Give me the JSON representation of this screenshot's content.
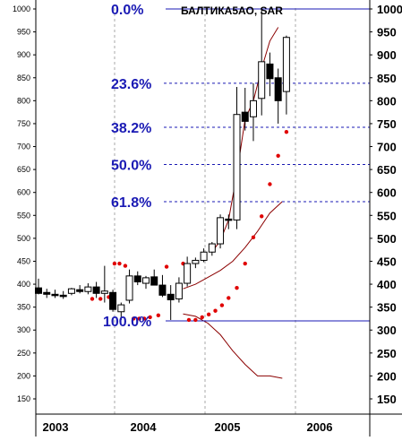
{
  "chart_data": {
    "type": "candlestick",
    "title": "БАЛТИКА5АО, SAR",
    "y_axis": {
      "min": 150,
      "max": 1000,
      "step": 50,
      "position": "left-and-right"
    },
    "x_axis": {
      "labels": [
        "2003",
        "2004",
        "2005",
        "2006"
      ]
    },
    "grid": {
      "vertical": "dashed",
      "horizontal": "none"
    },
    "colors": {
      "fib": "#1a1ab4",
      "sar": "#e00000",
      "bands": "#8b0000",
      "candle": "#000000",
      "grid": "#a8a8a8"
    },
    "fibonacci_levels": [
      {
        "label": "0.0%",
        "value": 1000
      },
      {
        "label": "23.6%",
        "value": 838
      },
      {
        "label": "38.2%",
        "value": 742
      },
      {
        "label": "50.0%",
        "value": 661
      },
      {
        "label": "61.8%",
        "value": 580
      },
      {
        "label": "100.0%",
        "value": 320
      }
    ],
    "candles": [
      {
        "t": 0.0,
        "o": 392,
        "h": 412,
        "l": 378,
        "c": 380
      },
      {
        "t": 1.0,
        "o": 382,
        "h": 390,
        "l": 370,
        "c": 378
      },
      {
        "t": 2.0,
        "o": 378,
        "h": 388,
        "l": 370,
        "c": 376
      },
      {
        "t": 3.0,
        "o": 376,
        "h": 385,
        "l": 368,
        "c": 375
      },
      {
        "t": 4.0,
        "o": 380,
        "h": 392,
        "l": 376,
        "c": 390
      },
      {
        "t": 5.0,
        "o": 388,
        "h": 398,
        "l": 380,
        "c": 384
      },
      {
        "t": 6.0,
        "o": 384,
        "h": 402,
        "l": 378,
        "c": 394
      },
      {
        "t": 7.0,
        "o": 394,
        "h": 405,
        "l": 370,
        "c": 380
      },
      {
        "t": 8.0,
        "o": 380,
        "h": 440,
        "l": 360,
        "c": 385
      },
      {
        "t": 9.0,
        "o": 382,
        "h": 388,
        "l": 340,
        "c": 345
      },
      {
        "t": 10.0,
        "o": 340,
        "h": 360,
        "l": 322,
        "c": 355
      },
      {
        "t": 11.0,
        "o": 365,
        "h": 432,
        "l": 358,
        "c": 418
      },
      {
        "t": 12.0,
        "o": 418,
        "h": 428,
        "l": 398,
        "c": 405
      },
      {
        "t": 13.0,
        "o": 402,
        "h": 418,
        "l": 390,
        "c": 414
      },
      {
        "t": 14.0,
        "o": 416,
        "h": 432,
        "l": 400,
        "c": 398
      },
      {
        "t": 15.0,
        "o": 398,
        "h": 420,
        "l": 372,
        "c": 376
      },
      {
        "t": 16.0,
        "o": 378,
        "h": 398,
        "l": 322,
        "c": 366
      },
      {
        "t": 17.0,
        "o": 368,
        "h": 415,
        "l": 360,
        "c": 402
      },
      {
        "t": 18.0,
        "o": 402,
        "h": 460,
        "l": 395,
        "c": 445
      },
      {
        "t": 19.0,
        "o": 445,
        "h": 458,
        "l": 435,
        "c": 452
      },
      {
        "t": 20.0,
        "o": 452,
        "h": 478,
        "l": 448,
        "c": 470
      },
      {
        "t": 21.0,
        "o": 470,
        "h": 492,
        "l": 462,
        "c": 488
      },
      {
        "t": 22.0,
        "o": 488,
        "h": 552,
        "l": 478,
        "c": 545
      },
      {
        "t": 23.0,
        "o": 542,
        "h": 552,
        "l": 520,
        "c": 540
      },
      {
        "t": 24.0,
        "o": 540,
        "h": 830,
        "l": 520,
        "c": 770
      },
      {
        "t": 25.0,
        "o": 775,
        "h": 828,
        "l": 735,
        "c": 755
      },
      {
        "t": 26.0,
        "o": 765,
        "h": 838,
        "l": 712,
        "c": 800
      },
      {
        "t": 27.0,
        "o": 805,
        "h": 1000,
        "l": 768,
        "c": 885
      },
      {
        "t": 28.0,
        "o": 880,
        "h": 905,
        "l": 810,
        "c": 848
      },
      {
        "t": 29.0,
        "o": 850,
        "h": 870,
        "l": 750,
        "c": 800
      },
      {
        "t": 30.0,
        "o": 820,
        "h": 942,
        "l": 770,
        "c": 938
      }
    ],
    "sar_points": [
      {
        "t": 6.5,
        "v": 368
      },
      {
        "t": 7.5,
        "v": 368
      },
      {
        "t": 8.5,
        "v": 372
      },
      {
        "t": 9.2,
        "v": 445
      },
      {
        "t": 9.8,
        "v": 445
      },
      {
        "t": 10.5,
        "v": 440
      },
      {
        "t": 11.5,
        "v": 325
      },
      {
        "t": 12.2,
        "v": 325
      },
      {
        "t": 12.8,
        "v": 325
      },
      {
        "t": 13.5,
        "v": 328
      },
      {
        "t": 14.5,
        "v": 332
      },
      {
        "t": 15.5,
        "v": 438
      },
      {
        "t": 17.5,
        "v": 445
      },
      {
        "t": 18.2,
        "v": 322
      },
      {
        "t": 19.0,
        "v": 322
      },
      {
        "t": 19.8,
        "v": 328
      },
      {
        "t": 20.6,
        "v": 334
      },
      {
        "t": 21.4,
        "v": 342
      },
      {
        "t": 22.2,
        "v": 354
      },
      {
        "t": 23.0,
        "v": 370
      },
      {
        "t": 24.0,
        "v": 392
      },
      {
        "t": 25.0,
        "v": 445
      },
      {
        "t": 26.0,
        "v": 502
      },
      {
        "t": 27.0,
        "v": 548
      },
      {
        "t": 28.0,
        "v": 618
      },
      {
        "t": 29.0,
        "v": 680
      },
      {
        "t": 30.0,
        "v": 732
      }
    ],
    "band_upper": [
      {
        "t": 21.0,
        "v": 470
      },
      {
        "t": 22.0,
        "v": 495
      },
      {
        "t": 23.0,
        "v": 540
      },
      {
        "t": 24.0,
        "v": 640
      },
      {
        "t": 25.0,
        "v": 760
      },
      {
        "t": 26.0,
        "v": 800
      },
      {
        "t": 27.0,
        "v": 870
      },
      {
        "t": 28.0,
        "v": 930
      },
      {
        "t": 29.0,
        "v": 960
      }
    ],
    "band_lower": [
      {
        "t": 17.5,
        "v": 390
      },
      {
        "t": 19.0,
        "v": 400
      },
      {
        "t": 20.5,
        "v": 415
      },
      {
        "t": 22.0,
        "v": 430
      },
      {
        "t": 23.5,
        "v": 450
      },
      {
        "t": 25.0,
        "v": 480
      },
      {
        "t": 26.5,
        "v": 515
      },
      {
        "t": 28.0,
        "v": 555
      },
      {
        "t": 29.5,
        "v": 580
      }
    ],
    "band_bottom": [
      {
        "t": 17.5,
        "v": 335
      },
      {
        "t": 19.0,
        "v": 330
      },
      {
        "t": 20.5,
        "v": 315
      },
      {
        "t": 22.0,
        "v": 290
      },
      {
        "t": 23.5,
        "v": 255
      },
      {
        "t": 25.0,
        "v": 225
      },
      {
        "t": 26.5,
        "v": 200
      },
      {
        "t": 28.0,
        "v": 200
      },
      {
        "t": 29.5,
        "v": 195
      }
    ]
  }
}
